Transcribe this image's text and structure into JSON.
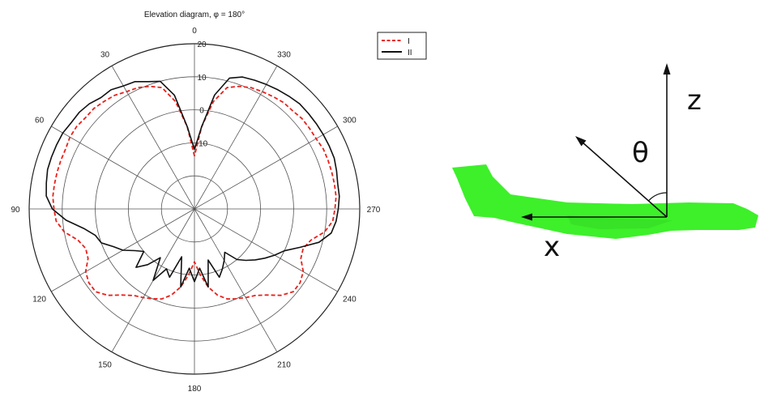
{
  "chart_data": {
    "type": "polar-line",
    "title": "Elevation diagram, φ = 180°",
    "angle_ticks": [
      "0",
      "30",
      "60",
      "90",
      "120",
      "150",
      "180",
      "210",
      "240",
      "270",
      "300",
      "330"
    ],
    "angle_tick_values": [
      0,
      30,
      60,
      90,
      120,
      150,
      180,
      210,
      240,
      270,
      300,
      330
    ],
    "angle_direction": "counterclockwise from top",
    "radial_ticks": [
      "20",
      "10",
      "0",
      "-10"
    ],
    "radial_tick_values": [
      20,
      10,
      0,
      -10
    ],
    "rlim": [
      -30,
      20
    ],
    "grid": true,
    "legend": {
      "placement": "top-right",
      "entries": [
        "I",
        "II"
      ]
    },
    "series": [
      {
        "name": "I",
        "color": "#e8211b",
        "dash": "dashed",
        "theta": [
          0,
          5,
          10,
          15,
          20,
          25,
          30,
          35,
          40,
          45,
          50,
          55,
          60,
          65,
          70,
          75,
          80,
          85,
          90,
          95,
          100,
          105,
          110,
          115,
          120,
          125,
          130,
          135,
          140,
          145,
          150,
          155,
          160,
          165,
          170,
          175,
          180,
          185,
          190,
          195,
          200,
          205,
          210,
          215,
          220,
          225,
          230,
          235,
          240,
          245,
          250,
          255,
          260,
          265,
          270,
          275,
          280,
          285,
          290,
          295,
          300,
          305,
          310,
          315,
          320,
          325,
          330,
          335,
          340,
          345,
          350,
          355,
          360
        ],
        "r": [
          -14,
          -5,
          3,
          8,
          9.5,
          10.5,
          11,
          12,
          12.5,
          13,
          13,
          13.5,
          13.5,
          13,
          13,
          13,
          13,
          13,
          12.5,
          12,
          10,
          6.5,
          5,
          5.5,
          8,
          9,
          9,
          7,
          4,
          2,
          1,
          0,
          -1,
          -3,
          -6,
          -10,
          -14,
          -10,
          -6,
          -3,
          -1,
          0,
          1,
          2,
          4,
          7,
          9,
          9,
          8,
          5.5,
          5,
          6.5,
          10,
          12,
          12.5,
          13,
          13,
          13,
          13,
          13,
          12.5,
          12.5,
          12.5,
          12,
          12,
          11.5,
          11,
          10.5,
          9.5,
          8,
          3,
          -5,
          -14
        ]
      },
      {
        "name": "II",
        "color": "#111111",
        "dash": "solid",
        "theta": [
          0,
          5,
          10,
          15,
          20,
          25,
          30,
          35,
          40,
          45,
          50,
          55,
          60,
          65,
          70,
          75,
          80,
          85,
          90,
          95,
          100,
          105,
          110,
          115,
          120,
          125,
          130,
          135,
          140,
          145,
          150,
          155,
          160,
          165,
          170,
          175,
          180,
          185,
          190,
          195,
          200,
          205,
          210,
          215,
          220,
          225,
          230,
          235,
          240,
          245,
          250,
          255,
          260,
          265,
          270,
          275,
          280,
          285,
          290,
          295,
          300,
          305,
          310,
          315,
          320,
          325,
          330,
          335,
          340,
          345,
          350,
          355,
          360
        ],
        "r": [
          -12,
          -5,
          5,
          10,
          11,
          12.5,
          13,
          14,
          14,
          15,
          15.5,
          15.5,
          16,
          16,
          16,
          16,
          15.5,
          15,
          13,
          9,
          4,
          1,
          0,
          -3,
          -5,
          -8,
          -10,
          -5,
          -8,
          -12,
          -5,
          -10,
          -8,
          -15,
          -6,
          -12,
          -8,
          -12,
          -6,
          -14,
          -8,
          -10,
          -12,
          -14,
          -10,
          -8,
          -6,
          -4,
          -2,
          0,
          4,
          9,
          12,
          13,
          13.5,
          14,
          14,
          14.5,
          15,
          15,
          15,
          15,
          15,
          15,
          14.5,
          14,
          13.5,
          13,
          12.5,
          11,
          5,
          -5,
          -12
        ]
      }
    ]
  },
  "diagram": {
    "z_label": "z",
    "x_label": "x",
    "theta_label": "θ",
    "aircraft_color": "#3df02a"
  }
}
